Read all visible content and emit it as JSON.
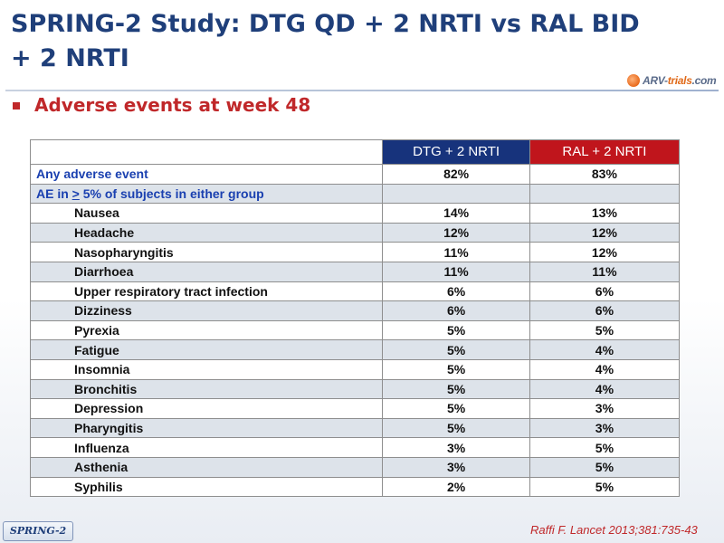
{
  "slide": {
    "title_line1": "SPRING-2 Study: DTG QD + 2 NRTI vs RAL BID",
    "title_line2": "+ 2 NRTI",
    "subtitle": "Adverse events at week 48",
    "logo_text_a": "ARV-",
    "logo_text_b": "trials",
    "logo_text_c": ".com",
    "tag": "SPRING-2",
    "citation": "Raffi F. Lancet 2013;381:735-43"
  },
  "table": {
    "col_dtg": "DTG + 2 NRTI",
    "col_ral": "RAL + 2 NRTI",
    "any_label": "Any adverse event",
    "any_dtg": "82%",
    "any_ral": "83%",
    "ae_label_pre": "AE in ",
    "ae_label_gt": ">",
    "ae_label_post": " 5% of subjects in either group",
    "rows": [
      {
        "label": "Nausea",
        "dtg": "14%",
        "ral": "13%"
      },
      {
        "label": "Headache",
        "dtg": "12%",
        "ral": "12%"
      },
      {
        "label": "Nasopharyngitis",
        "dtg": "11%",
        "ral": "12%"
      },
      {
        "label": "Diarrhoea",
        "dtg": "11%",
        "ral": "11%"
      },
      {
        "label": "Upper respiratory tract infection",
        "dtg": "6%",
        "ral": "6%"
      },
      {
        "label": "Dizziness",
        "dtg": "6%",
        "ral": "6%"
      },
      {
        "label": "Pyrexia",
        "dtg": "5%",
        "ral": "5%"
      },
      {
        "label": "Fatigue",
        "dtg": "5%",
        "ral": "4%"
      },
      {
        "label": "Insomnia",
        "dtg": "5%",
        "ral": "4%"
      },
      {
        "label": "Bronchitis",
        "dtg": "5%",
        "ral": "4%"
      },
      {
        "label": "Depression",
        "dtg": "5%",
        "ral": "3%"
      },
      {
        "label": "Pharyngitis",
        "dtg": "5%",
        "ral": "3%"
      },
      {
        "label": "Influenza",
        "dtg": "3%",
        "ral": "5%"
      },
      {
        "label": "Asthenia",
        "dtg": "3%",
        "ral": "5%"
      },
      {
        "label": "Syphilis",
        "dtg": "2%",
        "ral": "5%"
      }
    ]
  },
  "colors": {
    "title": "#1f3f7a",
    "accent_red": "#c0282a",
    "dtg_header": "#17337c",
    "ral_header": "#c0151c",
    "row_alt": "#dde3ea",
    "group_label": "#1a40b0"
  }
}
